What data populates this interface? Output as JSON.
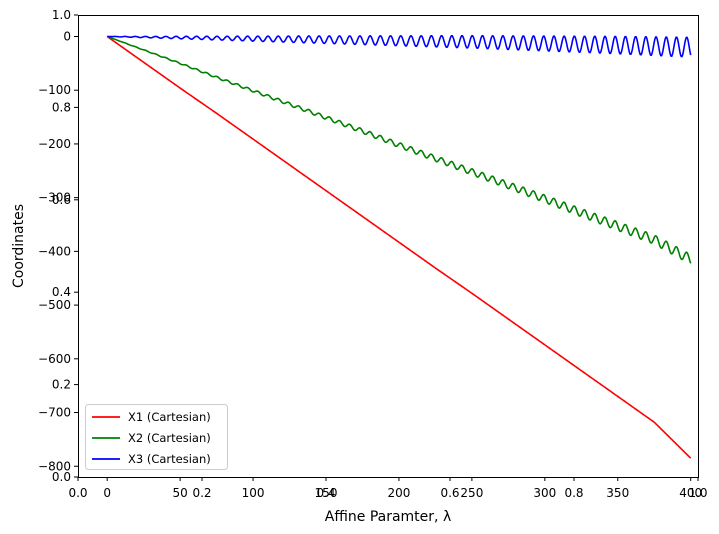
{
  "chart_data": {
    "type": "line",
    "xlabel": "Affine Paramter, λ",
    "ylabel": "Coordinates",
    "xlim": [
      -20,
      405
    ],
    "ylim": [
      -820,
      40
    ],
    "xticks": [
      {
        "value": 0,
        "label": "0"
      },
      {
        "value": 50,
        "label": "50"
      },
      {
        "value": 100,
        "label": "100"
      },
      {
        "value": 150,
        "label": "150"
      },
      {
        "value": 200,
        "label": "200"
      },
      {
        "value": 250,
        "label": "250"
      },
      {
        "value": 300,
        "label": "300"
      },
      {
        "value": 350,
        "label": "350"
      },
      {
        "value": 400,
        "label": "400"
      }
    ],
    "yticks": [
      {
        "value": 0,
        "label": "0"
      },
      {
        "value": -100,
        "label": "−100"
      },
      {
        "value": -200,
        "label": "−200"
      },
      {
        "value": -300,
        "label": "−300"
      },
      {
        "value": -400,
        "label": "−400"
      },
      {
        "value": -500,
        "label": "−500"
      },
      {
        "value": -600,
        "label": "−600"
      },
      {
        "value": -700,
        "label": "−700"
      },
      {
        "value": -800,
        "label": "−800"
      }
    ],
    "overlay_axes": {
      "xticks": [
        {
          "value": 0.0,
          "label": "0.0"
        },
        {
          "value": 0.2,
          "label": "0.2"
        },
        {
          "value": 0.4,
          "label": "0.4"
        },
        {
          "value": 0.6,
          "label": "0.6"
        },
        {
          "value": 0.8,
          "label": "0.8"
        },
        {
          "value": 1.0,
          "label": "1.0"
        }
      ],
      "yticks": [
        {
          "value": 0.0,
          "label": "0.0"
        },
        {
          "value": 0.2,
          "label": "0.2"
        },
        {
          "value": 0.4,
          "label": "0.4"
        },
        {
          "value": 0.6,
          "label": "0.6"
        },
        {
          "value": 0.8,
          "label": "0.8"
        },
        {
          "value": 1.0,
          "label": "1.0"
        }
      ]
    },
    "legend": {
      "placement": "lower-left"
    },
    "series": [
      {
        "name": "X1 (Cartesian)",
        "color": "#ff0000",
        "points": [
          [
            0,
            0
          ],
          [
            25,
            -48
          ],
          [
            50,
            -96
          ],
          [
            75,
            -143
          ],
          [
            100,
            -191
          ],
          [
            125,
            -239
          ],
          [
            150,
            -287
          ],
          [
            175,
            -335
          ],
          [
            200,
            -383
          ],
          [
            225,
            -431
          ],
          [
            250,
            -478
          ],
          [
            275,
            -526
          ],
          [
            300,
            -574
          ],
          [
            325,
            -622
          ],
          [
            350,
            -670
          ],
          [
            375,
            -718
          ],
          [
            400,
            -785
          ]
        ]
      },
      {
        "name": "X2 (Cartesian)",
        "color": "#008000",
        "points": [
          [
            0,
            0
          ],
          [
            25,
            -25
          ],
          [
            50,
            -50
          ],
          [
            75,
            -76
          ],
          [
            100,
            -101
          ],
          [
            125,
            -126
          ],
          [
            150,
            -151
          ],
          [
            175,
            -176
          ],
          [
            200,
            -202
          ],
          [
            225,
            -227
          ],
          [
            250,
            -252
          ],
          [
            275,
            -277
          ],
          [
            300,
            -302
          ],
          [
            325,
            -328
          ],
          [
            350,
            -353
          ],
          [
            375,
            -378
          ],
          [
            400,
            -415
          ]
        ]
      },
      {
        "name": "X3 (Cartesian)",
        "color": "#0000ff",
        "points": [
          [
            0,
            0
          ],
          [
            50,
            -2
          ],
          [
            100,
            -4
          ],
          [
            150,
            -6
          ],
          [
            200,
            -8
          ],
          [
            250,
            -10
          ],
          [
            300,
            -13
          ],
          [
            350,
            -16
          ],
          [
            400,
            -20
          ]
        ]
      }
    ]
  }
}
